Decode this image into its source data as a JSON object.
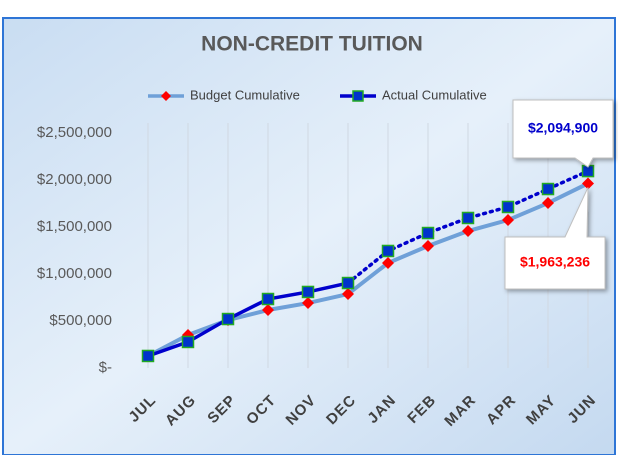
{
  "chart_data": {
    "type": "line",
    "title": "NON-CREDIT TUITION",
    "categories": [
      "JUL",
      "AUG",
      "SEP",
      "OCT",
      "NOV",
      "DEC",
      "JAN",
      "FEB",
      "MAR",
      "APR",
      "MAY",
      "JUN"
    ],
    "series": [
      {
        "name": "Budget Cumulative",
        "color": "#6fa0d8",
        "marker_color": "#ff0000",
        "values": [
          128000,
          351000,
          510000,
          617000,
          691000,
          787000,
          1117000,
          1298000,
          1457000,
          1574000,
          1755000,
          1963236
        ],
        "value_labels": [
          null,
          null,
          null,
          null,
          null,
          null,
          null,
          null,
          null,
          null,
          null,
          "$1,963,236"
        ]
      },
      {
        "name": "Actual Cumulative",
        "color": "#0000cc",
        "marker_color": "#0033cc",
        "values": [
          128000,
          277000,
          521000,
          734000,
          809000,
          904000,
          1245000,
          1436000,
          1596000,
          1713000,
          1904000,
          2094900
        ],
        "value_labels": [
          null,
          null,
          null,
          null,
          null,
          null,
          null,
          null,
          null,
          null,
          null,
          "$2,094,900"
        ]
      }
    ],
    "ylim": [
      0,
      2500000
    ],
    "yticks": [
      {
        "value": 0,
        "label": "$-"
      },
      {
        "value": 500000,
        "label": "$500,000"
      },
      {
        "value": 1000000,
        "label": "$1,000,000"
      },
      {
        "value": 1500000,
        "label": "$1,500,000"
      },
      {
        "value": 2000000,
        "label": "$2,000,000"
      },
      {
        "value": 2500000,
        "label": "$2,500,000"
      }
    ],
    "grid": "x",
    "legend": "top"
  }
}
